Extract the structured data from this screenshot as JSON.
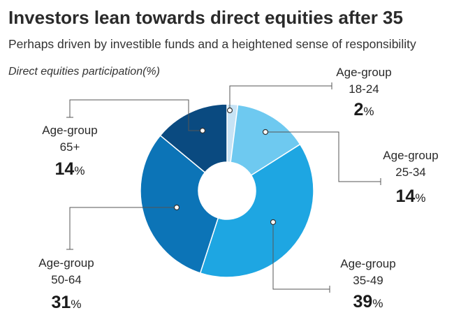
{
  "title": "Investors lean towards direct equities after 35",
  "subtitle": "Perhaps driven by investible funds and a heightened sense of responsibility",
  "chart_label": "Direct equities participation(%)",
  "chart_data": {
    "type": "pie",
    "donut": true,
    "unit": "%",
    "slices": [
      {
        "label": "Age-group",
        "group": "18-24",
        "value": 2,
        "color": "#c7e3f5"
      },
      {
        "label": "Age-group",
        "group": "25-34",
        "value": 14,
        "color": "#6ec9f0"
      },
      {
        "label": "Age-group",
        "group": "35-49",
        "value": 39,
        "color": "#1ea6e2"
      },
      {
        "label": "Age-group",
        "group": "50-64",
        "value": 31,
        "color": "#0c74b7"
      },
      {
        "label": "Age-group",
        "group": "65+",
        "value": 14,
        "color": "#0a4a80"
      }
    ]
  }
}
